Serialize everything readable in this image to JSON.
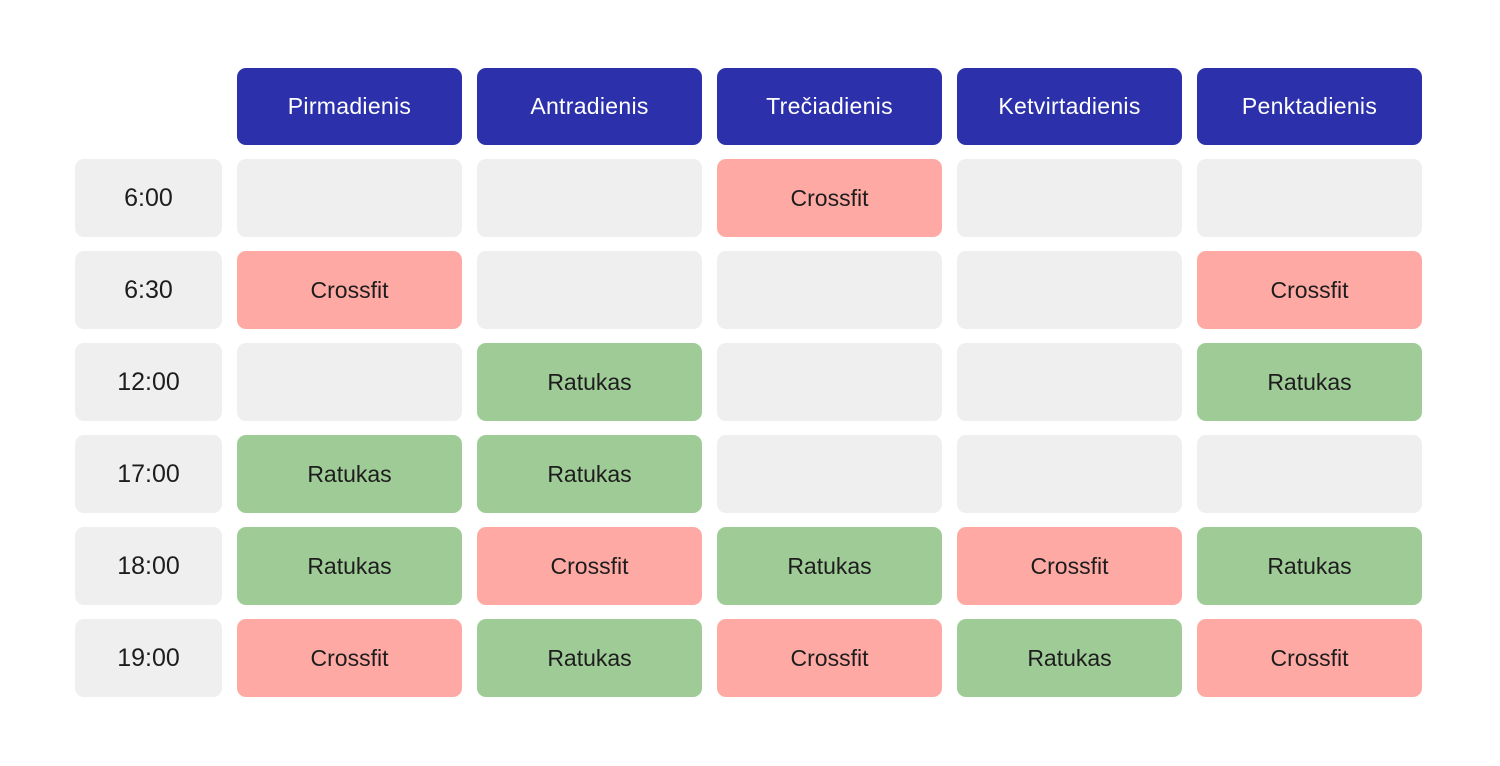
{
  "schedule": {
    "days": [
      "Pirmadienis",
      "Antradienis",
      "Trečiadienis",
      "Ketvirtadienis",
      "Penktadienis"
    ],
    "rows": [
      {
        "time": "6:00",
        "cells": [
          "",
          "",
          "Crossfit",
          "",
          ""
        ]
      },
      {
        "time": "6:30",
        "cells": [
          "Crossfit",
          "",
          "",
          "",
          "Crossfit"
        ]
      },
      {
        "time": "12:00",
        "cells": [
          "",
          "Ratukas",
          "",
          "",
          "Ratukas"
        ]
      },
      {
        "time": "17:00",
        "cells": [
          "Ratukas",
          "Ratukas",
          "",
          "",
          ""
        ]
      },
      {
        "time": "18:00",
        "cells": [
          "Ratukas",
          "Crossfit",
          "Ratukas",
          "Crossfit",
          "Ratukas"
        ]
      },
      {
        "time": "19:00",
        "cells": [
          "Crossfit",
          "Ratukas",
          "Crossfit",
          "Ratukas",
          "Crossfit"
        ]
      }
    ]
  },
  "activity_class": {
    "Crossfit": "crossfit",
    "Ratukas": "ratukas"
  },
  "colors": {
    "header_bg": "#2c31ab",
    "header_text": "#ffffff",
    "crossfit_bg": "#ffa9a4",
    "ratukas_bg": "#9fcb97",
    "empty_bg": "#efefef",
    "cell_text": "#1d1d1d"
  },
  "chart_data": {
    "type": "table",
    "title": "",
    "columns": [
      "",
      "Pirmadienis",
      "Antradienis",
      "Trečiadienis",
      "Ketvirtadienis",
      "Penktadienis"
    ],
    "rows": [
      [
        "6:00",
        "",
        "",
        "Crossfit",
        "",
        ""
      ],
      [
        "6:30",
        "Crossfit",
        "",
        "",
        "",
        "Crossfit"
      ],
      [
        "12:00",
        "",
        "Ratukas",
        "",
        "",
        "Ratukas"
      ],
      [
        "17:00",
        "Ratukas",
        "Ratukas",
        "",
        "",
        ""
      ],
      [
        "18:00",
        "Ratukas",
        "Crossfit",
        "Ratukas",
        "Crossfit",
        "Ratukas"
      ],
      [
        "19:00",
        "Crossfit",
        "Ratukas",
        "Crossfit",
        "Ratukas",
        "Crossfit"
      ]
    ],
    "legend": [
      {
        "label": "Crossfit",
        "color": "#ffa9a4"
      },
      {
        "label": "Ratukas",
        "color": "#9fcb97"
      },
      {
        "label": "empty slot",
        "color": "#efefef"
      }
    ],
    "layout": "weekly schedule grid: time rows x weekday columns"
  }
}
